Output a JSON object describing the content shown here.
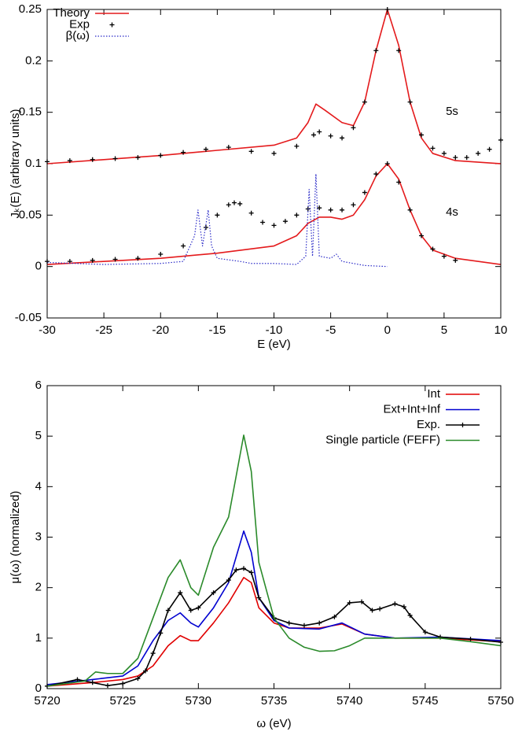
{
  "chart_data": [
    {
      "type": "line",
      "xlabel": "E (eV)",
      "ylabel": "Jₖ(E) (arbitrary units)",
      "xlim": [
        -30,
        10
      ],
      "ylim": [
        -0.05,
        0.25
      ],
      "xticks": [
        -30,
        -25,
        -20,
        -15,
        -10,
        -5,
        0,
        5,
        10
      ],
      "yticks": [
        -0.05,
        0,
        0.05,
        0.1,
        0.15,
        0.2,
        0.25
      ],
      "legend": "top-left",
      "annotations": [
        "5s",
        "4s"
      ],
      "series": [
        {
          "name": "Theory",
          "color": "#e41a1c",
          "style": "line",
          "x": [
            -30,
            -20,
            -15,
            -10,
            -8,
            -7,
            -6.3,
            -5.5,
            -4,
            -3,
            -2,
            -1,
            0,
            1,
            2,
            3,
            4,
            6,
            10,
            null,
            -30,
            -20,
            -15,
            -10,
            -8,
            -7,
            -6,
            -5,
            -4,
            -3,
            -2,
            -1,
            0,
            1,
            2,
            3,
            4,
            6,
            10
          ],
          "values": [
            0.1,
            0.108,
            0.113,
            0.118,
            0.125,
            0.14,
            0.158,
            0.152,
            0.14,
            0.137,
            0.16,
            0.21,
            0.25,
            0.215,
            0.16,
            0.125,
            0.11,
            0.103,
            0.1,
            null,
            0.002,
            0.008,
            0.013,
            0.02,
            0.03,
            0.042,
            0.048,
            0.048,
            0.046,
            0.05,
            0.065,
            0.088,
            0.1,
            0.085,
            0.055,
            0.03,
            0.016,
            0.008,
            0.002
          ]
        },
        {
          "name": "Exp",
          "color": "#000000",
          "style": "points",
          "x": [
            -30,
            -28,
            -26,
            -24,
            -22,
            -20,
            -18,
            -16,
            -14,
            -12,
            -10,
            -8,
            -6.5,
            -6,
            -5,
            -4,
            -3,
            -2,
            -1,
            0,
            1,
            2,
            3,
            4,
            5,
            6,
            7,
            8,
            9,
            10,
            -30,
            -28,
            -26,
            -24,
            -22,
            -20,
            -18,
            -16,
            -15,
            -14,
            -13.5,
            -13,
            -12,
            -11,
            -10,
            -9,
            -8,
            -7,
            -6,
            -5,
            -4,
            -3,
            -2,
            -1,
            0,
            1,
            2,
            3,
            4,
            5,
            6
          ],
          "values": [
            0.102,
            0.103,
            0.104,
            0.105,
            0.106,
            0.108,
            0.111,
            0.114,
            0.116,
            0.112,
            0.11,
            0.117,
            0.128,
            0.131,
            0.127,
            0.125,
            0.135,
            0.16,
            0.21,
            0.25,
            0.21,
            0.16,
            0.128,
            0.115,
            0.11,
            0.106,
            0.106,
            0.11,
            0.114,
            0.123,
            0.005,
            0.005,
            0.006,
            0.007,
            0.008,
            0.012,
            0.02,
            0.038,
            0.05,
            0.06,
            0.062,
            0.061,
            0.052,
            0.043,
            0.04,
            0.044,
            0.05,
            0.056,
            0.057,
            0.055,
            0.055,
            0.06,
            0.072,
            0.09,
            0.1,
            0.082,
            0.055,
            0.03,
            0.017,
            0.01,
            0.006
          ]
        },
        {
          "name": "β(ω)",
          "color": "#2b2bc8",
          "style": "dotted",
          "x": [
            -30,
            -25,
            -20,
            -18,
            -17,
            -16.7,
            -16.3,
            -15.8,
            -15.5,
            -15,
            -13,
            -12,
            -10,
            -8,
            -7.2,
            -6.9,
            -6.6,
            -6.3,
            -6,
            -5,
            -4.5,
            -4,
            -2,
            0
          ],
          "values": [
            0.004,
            0.002,
            0.003,
            0.005,
            0.03,
            0.055,
            0.02,
            0.055,
            0.02,
            0.008,
            0.005,
            0.003,
            0.003,
            0.002,
            0.01,
            0.075,
            0.01,
            0.09,
            0.01,
            0.008,
            0.012,
            0.005,
            0.001,
            0
          ]
        }
      ]
    },
    {
      "type": "line",
      "xlabel": "ω (eV)",
      "ylabel": "μ(ω) (normalized)",
      "xlim": [
        5720,
        5750
      ],
      "ylim": [
        0,
        6
      ],
      "xticks": [
        5720,
        5725,
        5730,
        5735,
        5740,
        5745,
        5750
      ],
      "yticks": [
        0,
        1,
        2,
        3,
        4,
        5,
        6
      ],
      "legend": "top-right",
      "series": [
        {
          "name": "Int",
          "color": "#e00000",
          "style": "line",
          "x": [
            5720,
            5723,
            5725,
            5726,
            5727,
            5728,
            5728.8,
            5729.5,
            5730,
            5731,
            5732,
            5733,
            5733.5,
            5734,
            5735,
            5736,
            5738,
            5739.5,
            5741,
            5743,
            5746,
            5750
          ],
          "values": [
            0.05,
            0.12,
            0.18,
            0.25,
            0.45,
            0.85,
            1.05,
            0.95,
            0.95,
            1.3,
            1.7,
            2.2,
            2.1,
            1.6,
            1.3,
            1.2,
            1.2,
            1.28,
            1.08,
            1.0,
            1.0,
            0.93
          ]
        },
        {
          "name": "Ext+Int+Inf",
          "color": "#0000d0",
          "style": "line",
          "x": [
            5720,
            5723,
            5725,
            5726,
            5727,
            5728,
            5728.8,
            5729.5,
            5730,
            5731,
            5732,
            5733,
            5733.5,
            5734,
            5735,
            5736,
            5738,
            5739.5,
            5741,
            5743,
            5746,
            5750
          ],
          "values": [
            0.08,
            0.18,
            0.25,
            0.45,
            0.95,
            1.35,
            1.5,
            1.3,
            1.22,
            1.6,
            2.1,
            3.12,
            2.7,
            1.8,
            1.35,
            1.2,
            1.18,
            1.3,
            1.08,
            1.0,
            1.02,
            0.95
          ]
        },
        {
          "name": "Exp.",
          "color": "#000000",
          "style": "linepoints",
          "x": [
            5720,
            5722,
            5723,
            5724,
            5725,
            5726,
            5726.5,
            5727,
            5727.5,
            5728,
            5728.8,
            5729.5,
            5730,
            5731,
            5732,
            5732.5,
            5733,
            5733.5,
            5734,
            5735,
            5736,
            5737,
            5738,
            5739,
            5740,
            5740.8,
            5741.5,
            5742,
            5743,
            5743.6,
            5744,
            5745,
            5746,
            5748,
            5750
          ],
          "values": [
            0.05,
            0.18,
            0.12,
            0.06,
            0.1,
            0.2,
            0.35,
            0.7,
            1.1,
            1.55,
            1.9,
            1.55,
            1.6,
            1.9,
            2.15,
            2.35,
            2.38,
            2.3,
            1.8,
            1.4,
            1.3,
            1.25,
            1.3,
            1.42,
            1.7,
            1.72,
            1.55,
            1.58,
            1.68,
            1.62,
            1.45,
            1.12,
            1.02,
            0.98,
            0.92
          ]
        },
        {
          "name": "Single particle (FEFF)",
          "color": "#2a8a2a",
          "style": "line",
          "x": [
            5720,
            5722.5,
            5723.2,
            5724,
            5725,
            5726,
            5727,
            5728,
            5728.8,
            5729.5,
            5730,
            5731,
            5732,
            5733,
            5733.5,
            5734,
            5735,
            5736,
            5737,
            5738,
            5739,
            5740,
            5741,
            5743,
            5746,
            5748,
            5750
          ],
          "values": [
            0.05,
            0.15,
            0.33,
            0.3,
            0.3,
            0.6,
            1.4,
            2.2,
            2.55,
            2.0,
            1.85,
            2.8,
            3.4,
            5.02,
            4.3,
            2.5,
            1.4,
            1.0,
            0.82,
            0.74,
            0.75,
            0.85,
            1.0,
            1.0,
            1.0,
            0.93,
            0.85
          ]
        }
      ]
    }
  ]
}
